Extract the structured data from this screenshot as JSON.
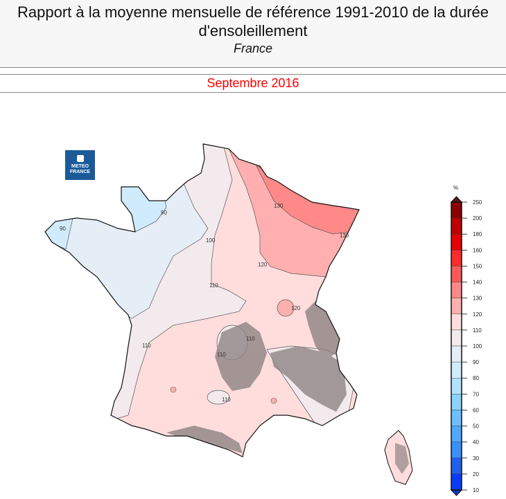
{
  "header": {
    "title": "Rapport à la moyenne mensuelle de référence 1991-2010 de la durée d'ensoleillement",
    "region": "France",
    "period": "Septembre 2016"
  },
  "logo": {
    "text_line1": "METEO",
    "text_line2": "FRANCE"
  },
  "legend": {
    "unit": "%",
    "ticks": [
      "250",
      "200",
      "180",
      "160",
      "150",
      "140",
      "130",
      "120",
      "110",
      "100",
      "90",
      "80",
      "70",
      "60",
      "50",
      "40",
      "30",
      "20",
      "10"
    ],
    "colors": [
      "#8b0000",
      "#c00000",
      "#e60000",
      "#ff2b2b",
      "#ff5858",
      "#ff8888",
      "#ffafaf",
      "#ffdddd",
      "#f3eaee",
      "#e5eef7",
      "#d0ecfc",
      "#b0e2ff",
      "#8ad2ff",
      "#6cc0ff",
      "#50a8ff",
      "#3890ff",
      "#2060f0",
      "#0a3cff"
    ],
    "top_arrow_color": "#5a1818",
    "bottom_arrow_color": "#0a3cc8"
  },
  "contours": [
    "90",
    "90",
    "100",
    "110",
    "110",
    "110",
    "110",
    "110",
    "120",
    "120",
    "130",
    "130"
  ]
}
